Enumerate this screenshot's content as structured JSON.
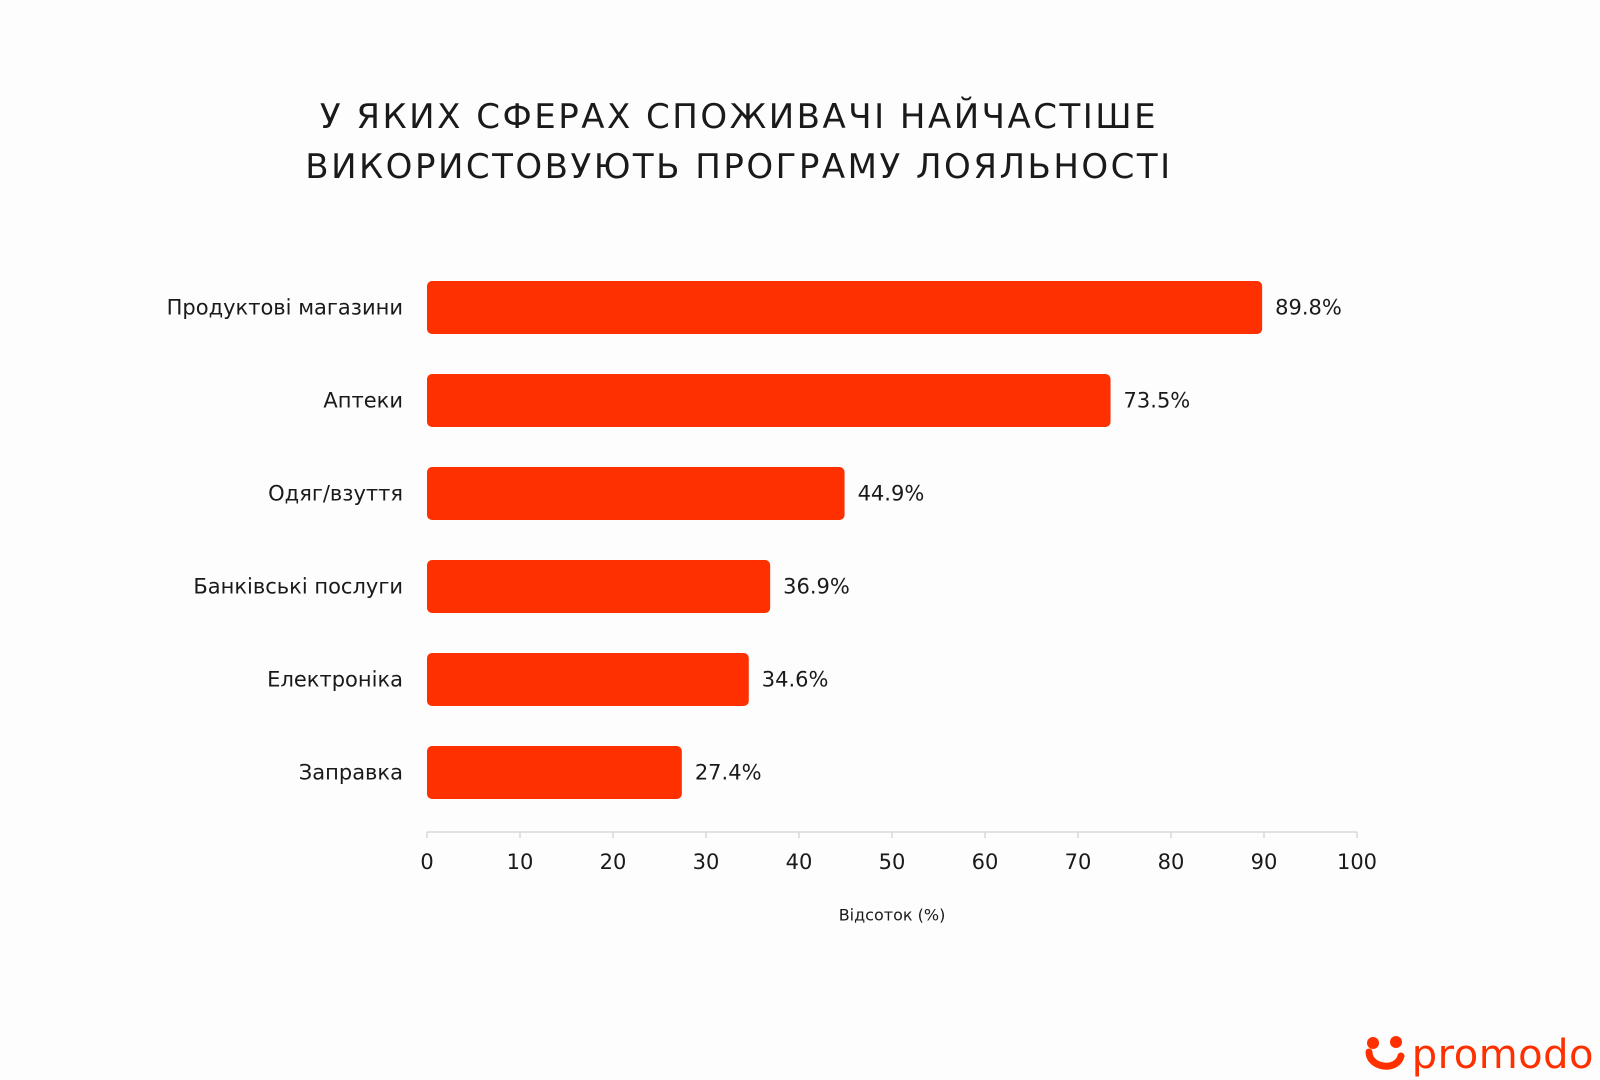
{
  "page": {
    "title_line1": "У яких сферах споживачі найчастіше",
    "title_line2": "використовують програму лояльності"
  },
  "chart_data": {
    "type": "bar",
    "orientation": "horizontal",
    "categories": [
      "Продуктові магазини",
      "Аптеки",
      "Одяг/взуття",
      "Банківські послуги",
      "Електроніка",
      "Заправка"
    ],
    "values": [
      89.8,
      73.5,
      44.9,
      36.9,
      34.6,
      27.4
    ],
    "value_labels": [
      "89.8%",
      "73.5%",
      "44.9%",
      "36.9%",
      "34.6%",
      "27.4%"
    ],
    "xlabel": "Відсоток (%)",
    "xlim": [
      0,
      100
    ],
    "xticks": [
      0,
      10,
      20,
      30,
      40,
      50,
      60,
      70,
      80,
      90,
      100
    ],
    "grid": false,
    "legend": "none",
    "bar_color": "#ff3000"
  },
  "brand": {
    "name": "promodo",
    "color": "#ff3000",
    "icon": "promodo-logo-icon"
  }
}
